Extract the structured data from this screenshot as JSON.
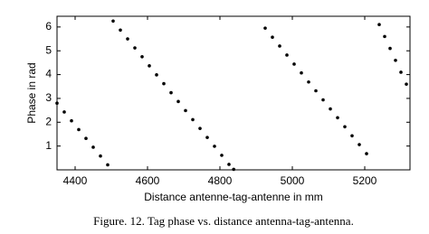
{
  "chart_data": {
    "type": "scatter",
    "x": [
      4350,
      4370,
      4390,
      4410,
      4430,
      4450,
      4470,
      4490,
      4505,
      4525,
      4545,
      4565,
      4585,
      4605,
      4625,
      4645,
      4665,
      4685,
      4705,
      4725,
      4745,
      4765,
      4785,
      4805,
      4825,
      4838,
      4925,
      4945,
      4965,
      4985,
      5005,
      5025,
      5045,
      5065,
      5085,
      5105,
      5125,
      5145,
      5165,
      5185,
      5205,
      5240,
      5255,
      5270,
      5285,
      5300,
      5315
    ],
    "values": [
      2.8,
      2.43,
      2.06,
      1.69,
      1.32,
      0.95,
      0.58,
      0.21,
      6.25,
      5.87,
      5.5,
      5.12,
      4.75,
      4.37,
      3.99,
      3.62,
      3.24,
      2.87,
      2.49,
      2.11,
      1.74,
      1.36,
      0.99,
      0.61,
      0.23,
      0.02,
      5.95,
      5.57,
      5.2,
      4.82,
      4.44,
      4.07,
      3.69,
      3.32,
      2.94,
      2.56,
      2.19,
      1.81,
      1.43,
      1.06,
      0.68,
      6.1,
      5.6,
      5.1,
      4.6,
      4.1,
      3.6
    ],
    "color": "#000000",
    "xlabel": "Distance antenne-tag-antenne in mm",
    "ylabel": "Phase in rad",
    "xlim": [
      4350,
      5325
    ],
    "xticks": [
      4400,
      4600,
      4800,
      5000,
      5200
    ],
    "ylim": [
      0,
      6.45
    ],
    "yticks": [
      1,
      2,
      3,
      4,
      5,
      6
    ],
    "grid": false,
    "caption": "Figure. 12. Tag phase vs. distance antenna-tag-antenna."
  }
}
